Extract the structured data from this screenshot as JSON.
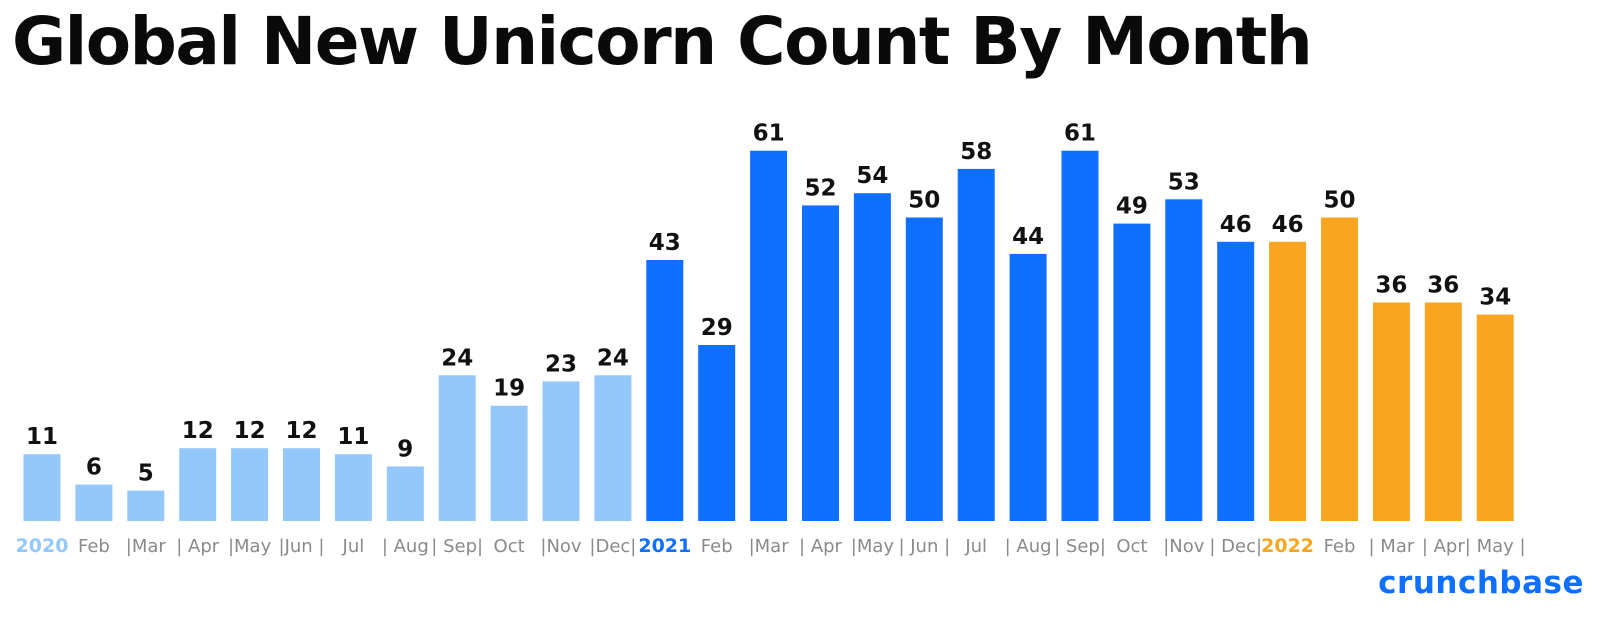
{
  "title": "Global New Unicorn Count By Month",
  "brand": "crunchbase",
  "colors": {
    "year_2020": "#94c8fa",
    "year_2021": "#0f6fff",
    "year_2022": "#f8a51f",
    "tick_text": "#8a8a8a",
    "value_text": "#111111",
    "title_text": "#0a0a0a"
  },
  "chart_data": {
    "type": "bar",
    "title": "Global New Unicorn Count By Month",
    "categories": [
      "2020",
      "Feb",
      "|Mar",
      "| Apr",
      "|May",
      "|Jun |",
      "Jul",
      "| Aug",
      "| Sep|",
      "Oct",
      "|Nov",
      "|Dec|",
      "2021",
      "Feb",
      "|Mar",
      "| Apr",
      "|May",
      "| Jun |",
      "Jul",
      "| Aug",
      "| Sep|",
      "Oct",
      "|Nov",
      "| Dec|",
      "2022",
      "Feb",
      "| Mar",
      "| Apr",
      "| May |"
    ],
    "groups": [
      "2020",
      "2020",
      "2020",
      "2020",
      "2020",
      "2020",
      "2020",
      "2020",
      "2020",
      "2020",
      "2020",
      "2020",
      "2021",
      "2021",
      "2021",
      "2021",
      "2021",
      "2021",
      "2021",
      "2021",
      "2021",
      "2021",
      "2021",
      "2021",
      "2022",
      "2022",
      "2022",
      "2022",
      "2022"
    ],
    "values": [
      11,
      6,
      5,
      12,
      12,
      12,
      11,
      9,
      24,
      19,
      23,
      24,
      43,
      29,
      61,
      52,
      54,
      50,
      58,
      44,
      61,
      49,
      53,
      46,
      46,
      50,
      36,
      36,
      34
    ],
    "year_labels": [
      "2020",
      "2021",
      "2022"
    ],
    "xlabel": "",
    "ylabel": "",
    "ylim": [
      0,
      61
    ],
    "grid": false,
    "legend": "none"
  }
}
